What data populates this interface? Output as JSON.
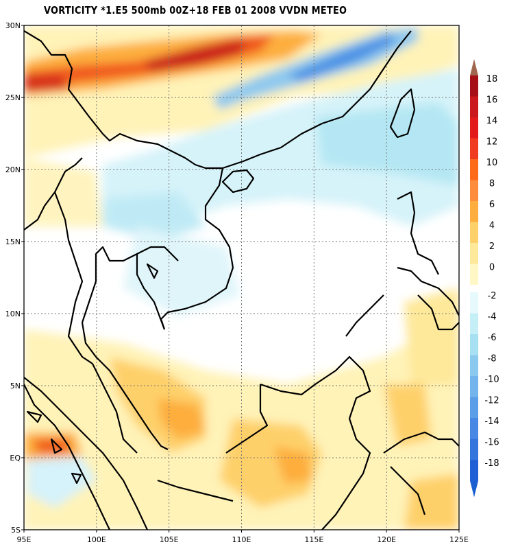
{
  "title": "VORTICITY *1.E5 500mb 00Z+18 FEB 01 2008 VVDN METEO",
  "map": {
    "lon_range": [
      95,
      125
    ],
    "lat_range": [
      -5,
      30
    ],
    "lon_labels": [
      "95E",
      "100E",
      "105E",
      "110E",
      "115E",
      "120E",
      "125E"
    ],
    "lat_labels": [
      "5S",
      "EQ",
      "5N",
      "10N",
      "15N",
      "20N",
      "25N",
      "30N"
    ],
    "gridlines": "dotted"
  },
  "legend": {
    "positive": [
      {
        "label": "18",
        "color": "#a50f15"
      },
      {
        "label": "16",
        "color": "#cb181d"
      },
      {
        "label": "14",
        "color": "#e31a1c"
      },
      {
        "label": "12",
        "color": "#f03b20"
      },
      {
        "label": "10",
        "color": "#fd6a1a"
      },
      {
        "label": "8",
        "color": "#fd8d3c"
      },
      {
        "label": "6",
        "color": "#fdae3e"
      },
      {
        "label": "4",
        "color": "#fed06a"
      },
      {
        "label": "2",
        "color": "#fee89a"
      },
      {
        "label": "0",
        "color": "#fff7c6"
      }
    ],
    "negative": [
      {
        "label": "-2",
        "color": "#e6f9fc"
      },
      {
        "label": "-4",
        "color": "#c5eff7"
      },
      {
        "label": "-6",
        "color": "#a6e0f2"
      },
      {
        "label": "-8",
        "color": "#8cc9ef"
      },
      {
        "label": "-10",
        "color": "#74b4ec"
      },
      {
        "label": "-12",
        "color": "#5b9ee8"
      },
      {
        "label": "-14",
        "color": "#4688e3"
      },
      {
        "label": "-16",
        "color": "#3374dd"
      },
      {
        "label": "-18",
        "color": "#1f5fd6"
      }
    ],
    "top_arrow_color": "#a0674e",
    "bottom_arrow_color": "#1a5fd0"
  }
}
